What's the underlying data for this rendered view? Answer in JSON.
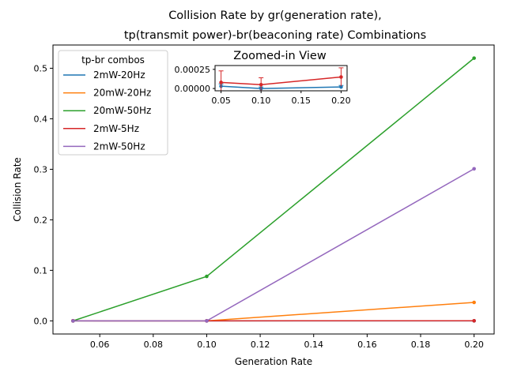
{
  "chart_data": [
    {
      "type": "line",
      "title_line1": "Collision Rate by gr(generation rate),",
      "title_line2": "tp(transmit power)-br(beaconing rate) Combinations",
      "xlabel": "Generation Rate",
      "ylabel": "Collision Rate",
      "x": [
        0.05,
        0.1,
        0.2
      ],
      "xlim": [
        0.0425,
        0.2075
      ],
      "ylim": [
        -0.026,
        0.546
      ],
      "xticks": [
        0.06,
        0.08,
        0.1,
        0.12,
        0.14,
        0.16,
        0.18,
        0.2
      ],
      "xtick_labels": [
        "0.06",
        "0.08",
        "0.10",
        "0.12",
        "0.14",
        "0.16",
        "0.18",
        "0.20"
      ],
      "yticks": [
        0.0,
        0.1,
        0.2,
        0.3,
        0.4,
        0.5
      ],
      "ytick_labels": [
        "0.0",
        "0.1",
        "0.2",
        "0.3",
        "0.4",
        "0.5"
      ],
      "legend": {
        "title": "tp-br combos",
        "placement": "upper-left"
      },
      "series": [
        {
          "name": "2mW-20Hz",
          "color": "#1f77b4",
          "values": [
            3e-05,
            0.0,
            2e-05
          ]
        },
        {
          "name": "20mW-20Hz",
          "color": "#ff7f0e",
          "values": [
            0.0,
            0.0,
            0.0365
          ]
        },
        {
          "name": "20mW-50Hz",
          "color": "#2ca02c",
          "values": [
            0.0,
            0.088,
            0.52
          ]
        },
        {
          "name": "2mW-5Hz",
          "color": "#d62728",
          "values": [
            8e-05,
            5e-05,
            0.00015
          ]
        },
        {
          "name": "2mW-50Hz",
          "color": "#9467bd",
          "values": [
            0.0,
            0.0,
            0.301
          ]
        }
      ]
    },
    {
      "type": "line",
      "title": "Zoomed-in View",
      "x": [
        0.05,
        0.1,
        0.2
      ],
      "xlim": [
        0.0425,
        0.2075
      ],
      "ylim": [
        -3e-05,
        0.0003
      ],
      "xticks": [
        0.05,
        0.1,
        0.15,
        0.2
      ],
      "xtick_labels": [
        "0.05",
        "0.10",
        "0.15",
        "0.20"
      ],
      "yticks": [
        0.0,
        0.00025
      ],
      "ytick_labels": [
        "0.00000",
        "0.00025"
      ],
      "series": [
        {
          "name": "2mW-20Hz",
          "color": "#1f77b4",
          "values": [
            3e-05,
            0.0,
            2e-05
          ],
          "errors": [
            3e-05,
            2e-05,
            2e-05
          ]
        },
        {
          "name": "2mW-5Hz",
          "color": "#d62728",
          "values": [
            8e-05,
            5e-05,
            0.00015
          ],
          "errors": [
            0.00015,
            9e-05,
            0.00012
          ]
        }
      ]
    }
  ]
}
